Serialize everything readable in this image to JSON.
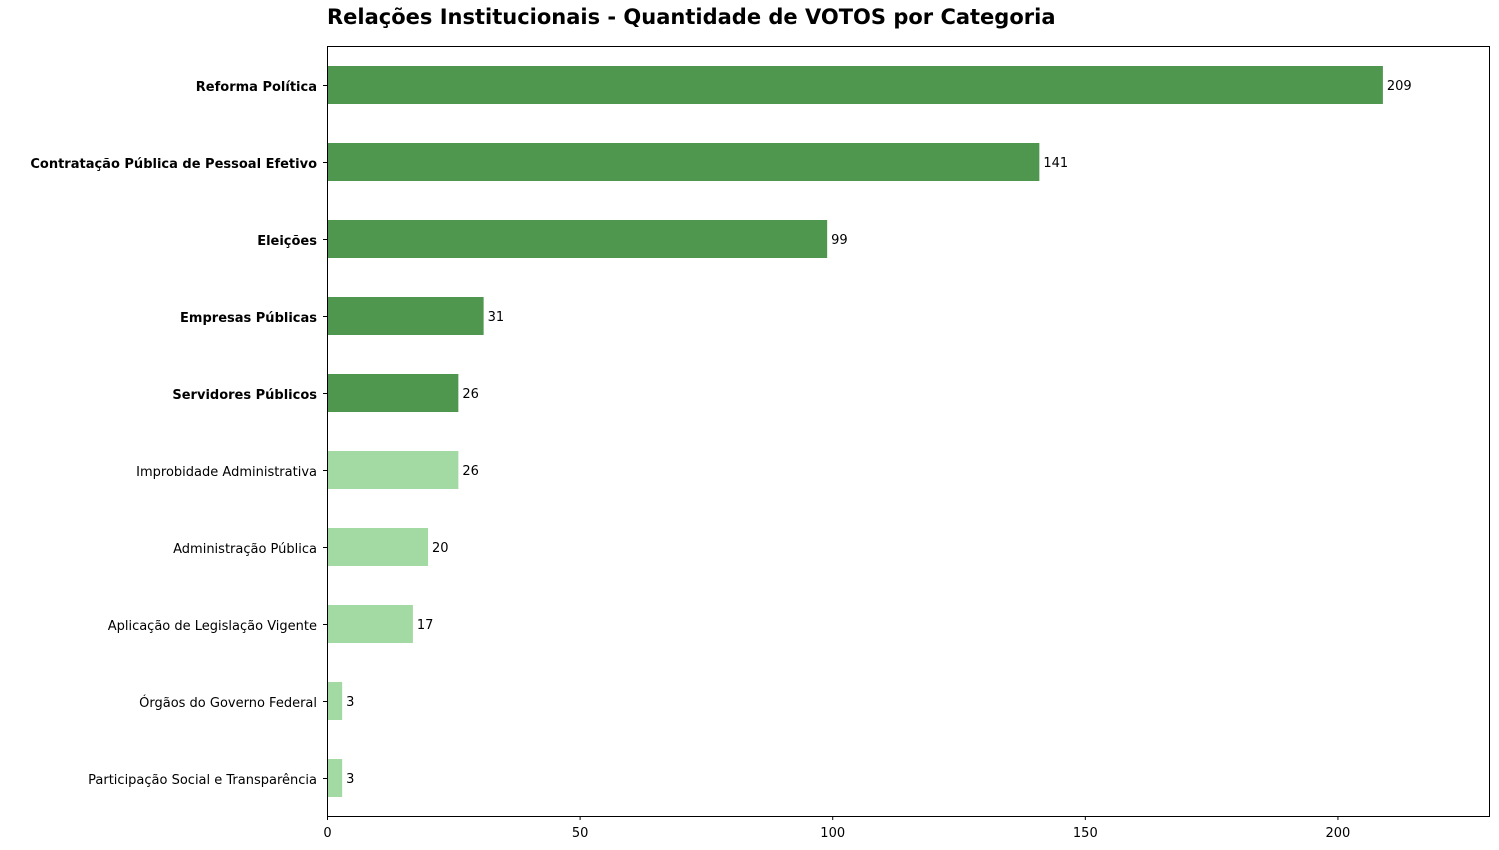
{
  "chart_data": {
    "type": "bar",
    "orientation": "horizontal",
    "title": "Relações Institucionais - Quantidade de VOTOS por Categoria",
    "xlabel": "",
    "ylabel": "",
    "xlim": [
      0,
      230
    ],
    "xticks": [
      0,
      50,
      100,
      150,
      200
    ],
    "grid": false,
    "categories": [
      "Reforma Política",
      "Contratação Pública de Pessoal Efetivo",
      "Eleições",
      "Empresas Públicas",
      "Servidores Públicos",
      "Improbidade Administrativa",
      "Administração Pública",
      "Aplicação de Legislação Vigente",
      "Órgãos do Governo Federal",
      "Participação Social e Transparência"
    ],
    "values": [
      209,
      141,
      99,
      31,
      26,
      26,
      20,
      17,
      3,
      3
    ],
    "highlighted": [
      true,
      true,
      true,
      true,
      true,
      false,
      false,
      false,
      false,
      false
    ],
    "colors": {
      "highlight": "#4f974f",
      "normal": "#a3d9a3"
    }
  }
}
